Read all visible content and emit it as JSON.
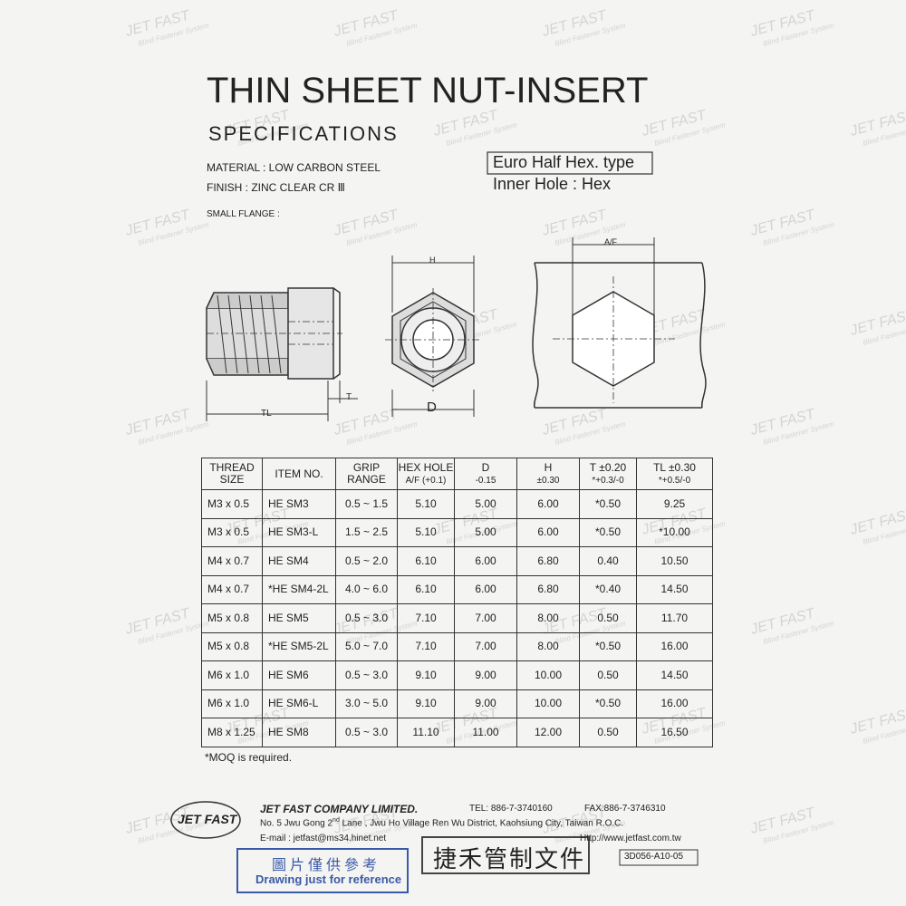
{
  "header": {
    "title": "THIN SHEET NUT-INSERT",
    "subtitle": "SPECIFICATIONS"
  },
  "specs": {
    "material": "MATERIAL : LOW CARBON STEEL",
    "finish": "FINISH : ZINC CLEAR CR Ⅲ",
    "flange": "SMALL FLANGE :",
    "type": "Euro Half Hex. type",
    "inner_hole": "Inner Hole : Hex"
  },
  "drawing": {
    "h": "H",
    "d": "D",
    "t": "T",
    "tl": "TL",
    "af": "A/F"
  },
  "watermark": {
    "brand": "JET FAST",
    "tagline": "Blind Fastener System"
  },
  "table": {
    "header": [
      [
        "THREAD",
        "SIZE"
      ],
      [
        "ITEM NO."
      ],
      [
        "GRIP",
        "RANGE"
      ],
      [
        "HEX HOLE",
        "A/F (+0.1)"
      ],
      [
        "D",
        "-0.15"
      ],
      [
        "H",
        "±0.30"
      ],
      [
        "T ±0.20",
        "*+0.3/-0"
      ],
      [
        "TL ±0.30",
        "*+0.5/-0"
      ]
    ],
    "rows": [
      [
        "M3 x 0.5",
        "HE SM3",
        "0.5 ~ 1.5",
        "5.10",
        "5.00",
        "6.00",
        "*0.50",
        "9.25"
      ],
      [
        "M3 x 0.5",
        "HE SM3-L",
        "1.5 ~ 2.5",
        "5.10",
        "5.00",
        "6.00",
        "*0.50",
        "*10.00"
      ],
      [
        "M4 x 0.7",
        "HE SM4",
        "0.5 ~ 2.0",
        "6.10",
        "6.00",
        "6.80",
        "0.40",
        "10.50"
      ],
      [
        "M4 x 0.7",
        "*HE SM4-2L",
        "4.0 ~ 6.0",
        "6.10",
        "6.00",
        "6.80",
        "*0.40",
        "14.50"
      ],
      [
        "M5 x 0.8",
        "HE SM5",
        "0.5 ~ 3.0",
        "7.10",
        "7.00",
        "8.00",
        "0.50",
        "11.70"
      ],
      [
        "M5 x 0.8",
        "*HE SM5-2L",
        "5.0 ~ 7.0",
        "7.10",
        "7.00",
        "8.00",
        "*0.50",
        "16.00"
      ],
      [
        "M6 x 1.0",
        "HE SM6",
        "0.5 ~ 3.0",
        "9.10",
        "9.00",
        "10.00",
        "0.50",
        "14.50"
      ],
      [
        "M6 x 1.0",
        "HE SM6-L",
        "3.0 ~ 5.0",
        "9.10",
        "9.00",
        "10.00",
        "*0.50",
        "16.00"
      ],
      [
        "M8 x 1.25",
        "HE SM8",
        "0.5 ~ 3.0",
        "11.10",
        "11.00",
        "12.00",
        "0.50",
        "16.50"
      ]
    ],
    "note": "*MOQ is required."
  },
  "footer": {
    "logo": "JET FAST",
    "company": "JET FAST COMPANY LIMITED.",
    "tel": "TEL: 886-7-3740160",
    "fax": "FAX:886-7-3746310",
    "address": [
      "No. 5 Jwu Gong 2",
      "nd",
      "Lane , Jwu Ho Village Ren Wu  District, Kaohsiung City, Taiwan R.O.C."
    ],
    "email": "E-mail : jetfast@ms34.hinet.net",
    "web": "Http://www.jetfast.com.tw",
    "stamp_cn": "圖片僅供參考",
    "stamp_en": "Drawing just for reference",
    "control_stamp": "捷禾管制文件",
    "doc_no": "3D056-A10-05"
  }
}
